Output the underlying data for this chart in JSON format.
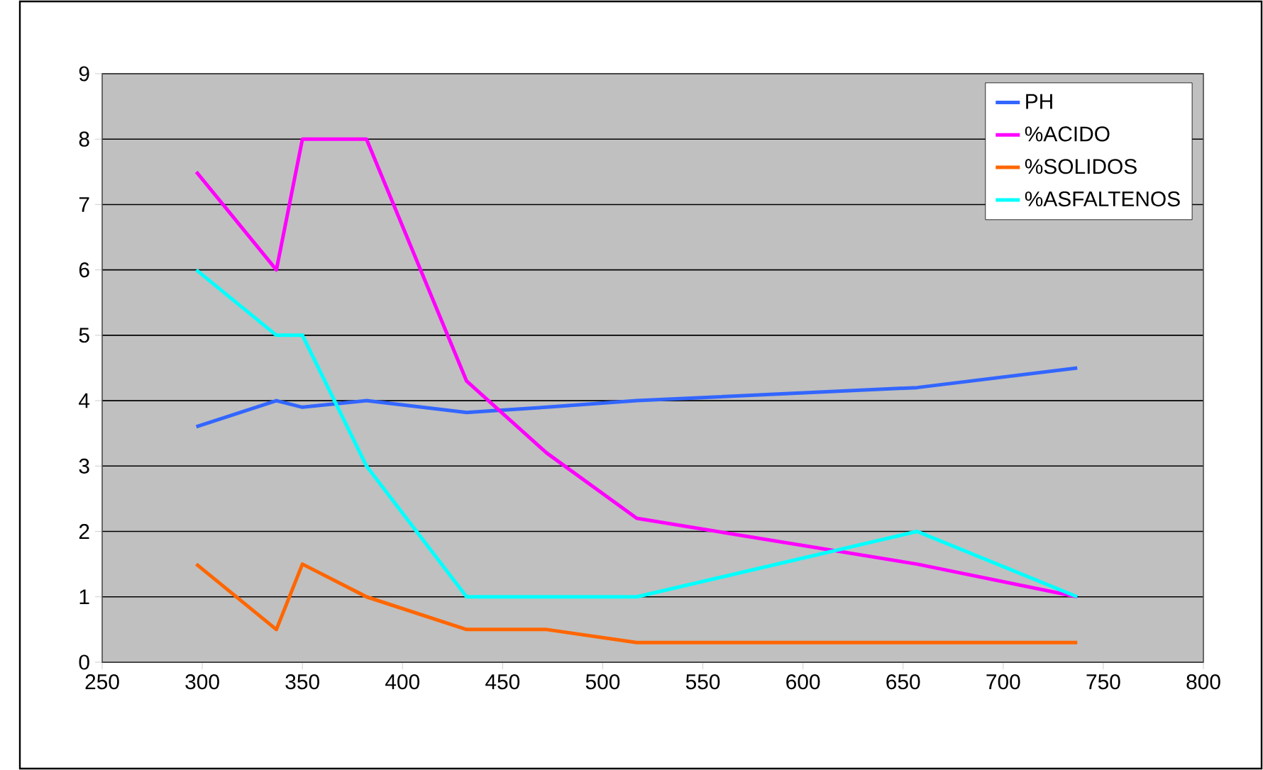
{
  "chart_data": {
    "type": "line",
    "x": [
      297,
      337,
      350,
      382,
      432,
      472,
      517,
      657,
      737
    ],
    "series": [
      {
        "name": "PH",
        "color": "#3366ff",
        "values": [
          3.6,
          4.0,
          3.9,
          4.0,
          3.82,
          3.9,
          4.0,
          4.2,
          4.5
        ]
      },
      {
        "name": "%ACIDO",
        "color": "#ff00ff",
        "values": [
          7.5,
          6,
          8,
          8,
          4.3,
          3.2,
          2.2,
          1.5,
          1.0
        ]
      },
      {
        "name": "%SOLIDOS",
        "color": "#ff6600",
        "values": [
          1.5,
          0.5,
          1.5,
          1.0,
          0.5,
          0.5,
          0.3,
          0.3,
          0.3
        ]
      },
      {
        "name": "%ASFALTENOS",
        "color": "#00ffff",
        "values": [
          6,
          5,
          5,
          3,
          1,
          1,
          1,
          2,
          1
        ]
      }
    ],
    "xlim": [
      250,
      800
    ],
    "xticks": [
      250,
      300,
      350,
      400,
      450,
      500,
      550,
      600,
      650,
      700,
      750,
      800
    ],
    "ylim": [
      0,
      9
    ],
    "yticks": [
      0,
      1,
      2,
      3,
      4,
      5,
      6,
      7,
      8,
      9
    ],
    "grid": "y",
    "legend": "top right",
    "marker": "none",
    "line_style": "solid"
  }
}
